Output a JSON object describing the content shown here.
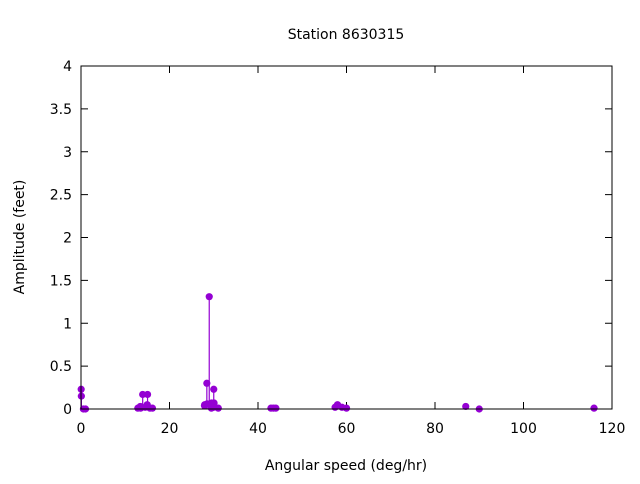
{
  "chart_data": {
    "type": "scatter",
    "style": "impulses with points",
    "title": "Station 8630315",
    "xlabel": "Angular speed (deg/hr)",
    "ylabel": "Amplitude (feet)",
    "xlim": [
      0,
      120
    ],
    "ylim": [
      0,
      4
    ],
    "xticks": [
      "0",
      "20",
      "40",
      "60",
      "80",
      "100",
      "120"
    ],
    "yticks": [
      "0",
      "0.5",
      "1",
      "1.5",
      "2",
      "2.5",
      "3",
      "3.5",
      "4"
    ],
    "grid": false,
    "legend": "none",
    "color": "#9400d3",
    "x": [
      0.04,
      0.08,
      0.54,
      1.02,
      12.85,
      13.4,
      13.47,
      13.94,
      14.5,
      14.96,
      15.04,
      15.59,
      16.14,
      27.9,
      27.97,
      28.44,
      28.51,
      28.98,
      29.46,
      29.53,
      29.96,
      30.0,
      30.08,
      31.02,
      42.93,
      43.48,
      44.03,
      57.42,
      57.97,
      58.98,
      60.0,
      86.95,
      90.0,
      115.94
    ],
    "y": [
      0.23,
      0.15,
      0.0,
      0.0,
      0.01,
      0.03,
      0.01,
      0.17,
      0.02,
      0.05,
      0.17,
      0.01,
      0.01,
      0.04,
      0.05,
      0.3,
      0.06,
      1.31,
      0.01,
      0.07,
      0.02,
      0.23,
      0.07,
      0.01,
      0.01,
      0.01,
      0.01,
      0.02,
      0.05,
      0.02,
      0.01,
      0.03,
      0.0,
      0.01
    ]
  }
}
